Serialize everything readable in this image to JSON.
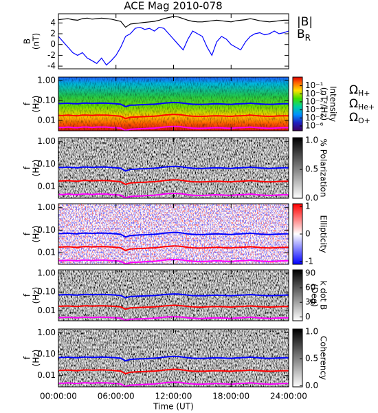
{
  "chart_data": [
    {
      "type": "line",
      "title": "ACE Mag 2010-078",
      "ylabel": "B",
      "yunit": "(nT)",
      "x": [
        0,
        0.5,
        1,
        1.5,
        2,
        2.5,
        3,
        3.5,
        4,
        4.5,
        5,
        5.5,
        6,
        6.5,
        7,
        7.5,
        8,
        8.5,
        9,
        9.5,
        10,
        10.5,
        11,
        11.5,
        12,
        12.5,
        13,
        13.5,
        14,
        14.5,
        15,
        15.5,
        16,
        16.5,
        17,
        17.5,
        18,
        18.5,
        19,
        19.5,
        20,
        20.5,
        21,
        21.5,
        22,
        22.5,
        23,
        23.5,
        24
      ],
      "ylim": [
        -4.5,
        5.7
      ],
      "yticks": [
        -4,
        -2,
        0,
        2,
        4
      ],
      "series": [
        {
          "name": "|B|",
          "color": "#000000",
          "values": [
            4.6,
            4.7,
            4.8,
            4.6,
            4.5,
            4.8,
            4.9,
            4.7,
            4.8,
            4.9,
            4.8,
            4.7,
            4.5,
            4.3,
            3.2,
            3.8,
            3.9,
            4.0,
            4.1,
            4.2,
            4.3,
            4.5,
            4.8,
            5.0,
            5.2,
            5.1,
            4.8,
            4.5,
            4.3,
            4.2,
            4.2,
            4.3,
            4.4,
            4.5,
            4.4,
            4.3,
            4.2,
            4.4,
            4.5,
            4.6,
            4.8,
            4.6,
            4.4,
            4.3,
            4.2,
            4.3,
            4.4,
            4.5,
            4.5
          ]
        },
        {
          "name": "B",
          "subscript": "R",
          "color": "#0000ff",
          "values": [
            1.5,
            0.5,
            -0.5,
            -1.5,
            -2.0,
            -1.5,
            -2.5,
            -3.0,
            -3.5,
            -2.5,
            -3.8,
            -3.0,
            -2.0,
            -0.5,
            1.5,
            2.0,
            3.0,
            3.2,
            2.8,
            3.0,
            2.5,
            3.2,
            3.0,
            2.0,
            1.0,
            0.0,
            -1.0,
            1.0,
            2.5,
            2.0,
            1.5,
            -0.5,
            -2.0,
            0.5,
            1.5,
            1.0,
            0.0,
            -0.5,
            -1.0,
            0.5,
            1.5,
            2.0,
            2.2,
            1.8,
            2.0,
            2.5,
            2.0,
            2.2,
            2.5
          ]
        }
      ]
    },
    {
      "type": "spectrogram",
      "ylabel": "f",
      "yunit": "(Hz)",
      "log_y": true,
      "ylim": [
        0.003,
        1.5
      ],
      "yticks": [
        0.01,
        {
          "value": 0.1,
          "label": "0.10"
        },
        {
          "value": 1,
          "label": "1.00"
        }
      ],
      "colormap": "rainbow",
      "colorbar": {
        "label": "Intensity",
        "unit": "(nT²/Hz)",
        "log": true,
        "lim": [
          2.5e-07,
          1.2
        ],
        "ticks": [
          {
            "value": 0.1,
            "label": "10⁻¹"
          },
          {
            "value": 0.01,
            "label": "10⁻²"
          },
          {
            "value": 0.001,
            "label": "10⁻³"
          },
          {
            "value": 0.0001,
            "label": "10⁻⁴"
          },
          {
            "value": 1e-05,
            "label": "10⁻⁵"
          },
          {
            "value": 1e-06,
            "label": "10⁻⁶"
          }
        ]
      },
      "series": [
        {
          "symbol": "Ω",
          "name": "H+",
          "color": "#0000ff",
          "values": [
            0.07,
            0.071,
            0.073,
            0.07,
            0.068,
            0.073,
            0.074,
            0.071,
            0.073,
            0.074,
            0.073,
            0.071,
            0.068,
            0.065,
            0.049,
            0.058,
            0.059,
            0.061,
            0.062,
            0.064,
            0.065,
            0.068,
            0.073,
            0.076,
            0.079,
            0.078,
            0.073,
            0.068,
            0.065,
            0.064,
            0.064,
            0.065,
            0.067,
            0.068,
            0.067,
            0.065,
            0.064,
            0.067,
            0.068,
            0.07,
            0.073,
            0.07,
            0.067,
            0.065,
            0.064,
            0.065,
            0.067,
            0.068,
            0.068
          ]
        },
        {
          "symbol": "Ω",
          "name": "He+",
          "color": "#ff0000",
          "values": [
            0.0175,
            0.0178,
            0.0183,
            0.0175,
            0.017,
            0.0183,
            0.0185,
            0.0178,
            0.0183,
            0.0185,
            0.0183,
            0.0178,
            0.017,
            0.0163,
            0.0123,
            0.0145,
            0.0148,
            0.0153,
            0.0155,
            0.016,
            0.0163,
            0.017,
            0.0183,
            0.019,
            0.0198,
            0.0195,
            0.0183,
            0.017,
            0.0163,
            0.016,
            0.016,
            0.0163,
            0.0168,
            0.017,
            0.0168,
            0.0163,
            0.016,
            0.0168,
            0.017,
            0.0175,
            0.0183,
            0.0175,
            0.0168,
            0.0163,
            0.016,
            0.0163,
            0.0168,
            0.017,
            0.017
          ]
        },
        {
          "symbol": "Ω",
          "name": "O+",
          "color": "#ff00ff",
          "values": [
            0.0044,
            0.0044,
            0.0046,
            0.0044,
            0.0043,
            0.0046,
            0.0046,
            0.0044,
            0.0046,
            0.0046,
            0.0046,
            0.0044,
            0.0043,
            0.0041,
            0.0031,
            0.0036,
            0.0037,
            0.0038,
            0.0039,
            0.004,
            0.0041,
            0.0043,
            0.0046,
            0.0048,
            0.0049,
            0.0049,
            0.0046,
            0.0043,
            0.0041,
            0.004,
            0.004,
            0.0041,
            0.0042,
            0.0043,
            0.0042,
            0.0041,
            0.004,
            0.0042,
            0.0043,
            0.0044,
            0.0046,
            0.0044,
            0.0042,
            0.0041,
            0.004,
            0.0041,
            0.0042,
            0.0043,
            0.0043
          ]
        }
      ]
    },
    {
      "type": "spectrogram",
      "ylabel": "f",
      "yunit": "(Hz)",
      "log_y": true,
      "ylim": [
        0.003,
        1.5
      ],
      "yticks": [
        0.01,
        {
          "value": 0.1,
          "label": "0.10"
        },
        {
          "value": 1,
          "label": "1.00"
        }
      ],
      "colormap": "gray",
      "colorbar": {
        "label": "% Polarization",
        "lim": [
          0,
          1.05
        ],
        "ticks": [
          {
            "value": 0,
            "label": "0.0"
          },
          0.5,
          {
            "value": 1,
            "label": "1.0"
          }
        ]
      }
    },
    {
      "type": "spectrogram",
      "ylabel": "f",
      "yunit": "(Hz)",
      "log_y": true,
      "ylim": [
        0.003,
        1.5
      ],
      "yticks": [
        0.01,
        {
          "value": 0.1,
          "label": "0.10"
        },
        {
          "value": 1,
          "label": "1.00"
        }
      ],
      "colormap": "bwr",
      "colorbar": {
        "label": "Ellipticity",
        "lim": [
          -1.1,
          1.1
        ],
        "ticks": [
          -1,
          0,
          1
        ]
      }
    },
    {
      "type": "spectrogram",
      "ylabel": "f",
      "yunit": "(Hz)",
      "log_y": true,
      "ylim": [
        0.003,
        1.5
      ],
      "yticks": [
        0.01,
        {
          "value": 0.1,
          "label": "0.10"
        },
        {
          "value": 1,
          "label": "1.00"
        }
      ],
      "colormap": "gray",
      "colorbar": {
        "label": "k dot B",
        "unit": "(Deg)",
        "lim": [
          -8,
          97
        ],
        "ticks": [
          0,
          30,
          60,
          90
        ]
      }
    },
    {
      "type": "spectrogram",
      "ylabel": "f",
      "yunit": "(Hz)",
      "log_y": true,
      "ylim": [
        0.003,
        1.5
      ],
      "yticks": [
        0.01,
        {
          "value": 0.1,
          "label": "0.10"
        },
        {
          "value": 1,
          "label": "1.00"
        }
      ],
      "colormap": "gray",
      "colorbar": {
        "label": "Coherency",
        "lim": [
          -0.02,
          1.05
        ],
        "ticks": [
          {
            "value": 0,
            "label": "0.0"
          },
          0.5,
          {
            "value": 1,
            "label": "1.0"
          }
        ]
      },
      "xlabel": "Time (UT)",
      "xlim": [
        0,
        24
      ],
      "xticks": [
        {
          "value": 0,
          "label": "00:00:00"
        },
        {
          "value": 6,
          "label": "06:00:00"
        },
        {
          "value": 12,
          "label": "12:00:00"
        },
        {
          "value": 18,
          "label": "18:00:00"
        },
        {
          "value": 24,
          "label": "24:00:00"
        }
      ]
    }
  ]
}
